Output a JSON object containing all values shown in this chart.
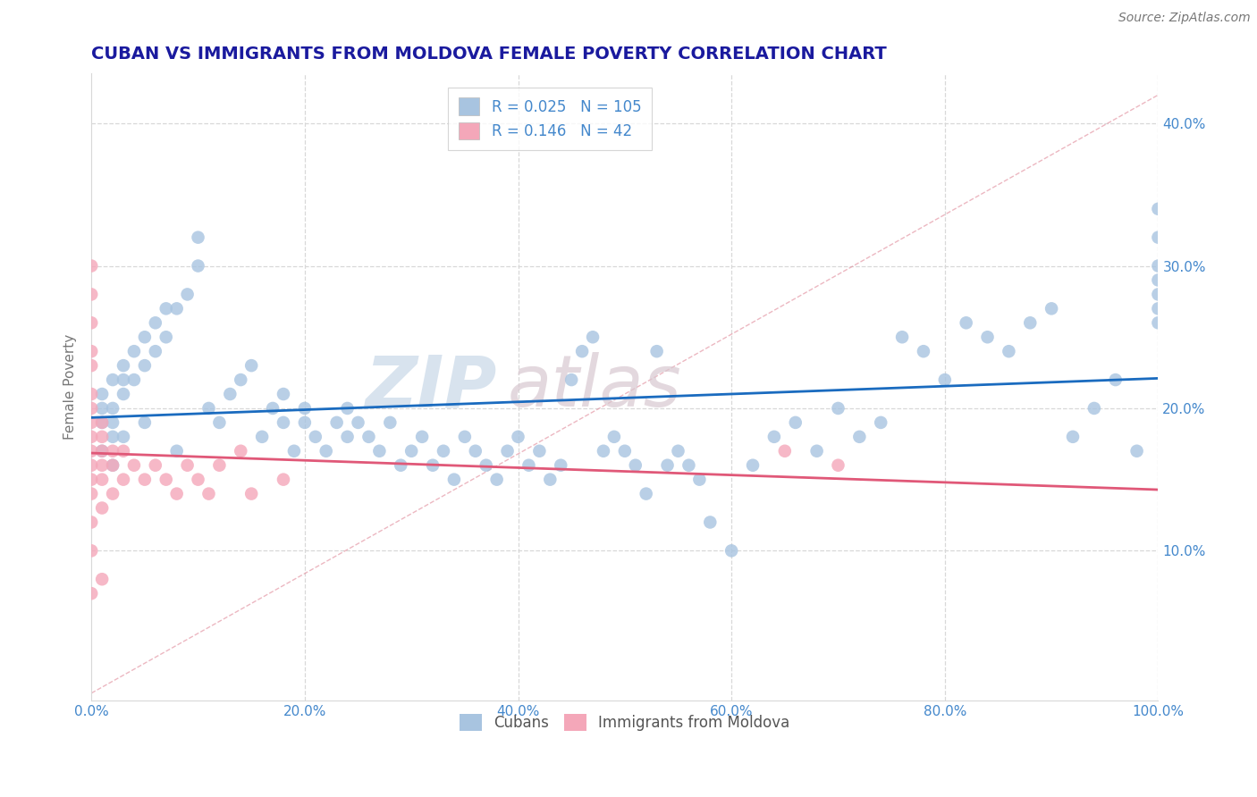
{
  "title": "CUBAN VS IMMIGRANTS FROM MOLDOVA FEMALE POVERTY CORRELATION CHART",
  "source": "Source: ZipAtlas.com",
  "ylabel": "Female Poverty",
  "xlim": [
    0,
    1.0
  ],
  "ylim": [
    -0.005,
    0.435
  ],
  "xticks": [
    0.0,
    0.2,
    0.4,
    0.6,
    0.8,
    1.0
  ],
  "xtick_labels": [
    "0.0%",
    "20.0%",
    "40.0%",
    "60.0%",
    "80.0%",
    "100.0%"
  ],
  "yticks": [
    0.0,
    0.1,
    0.2,
    0.3,
    0.4
  ],
  "right_ytick_labels": [
    "",
    "10.0%",
    "20.0%",
    "30.0%",
    "40.0%"
  ],
  "cubans_R": 0.025,
  "cubans_N": 105,
  "moldova_R": 0.146,
  "moldova_N": 42,
  "cubans_color": "#a8c4e0",
  "moldova_color": "#f4a7b9",
  "cubans_line_color": "#1a6bbf",
  "moldova_line_color": "#e05878",
  "title_color": "#1a1a9e",
  "axis_label_color": "#777777",
  "tick_color": "#4488cc",
  "grid_color": "#d8d8d8",
  "watermark_color": "#c8d8e8",
  "watermark2_color": "#d8c8d0",
  "cubans_x": [
    0.01,
    0.01,
    0.01,
    0.02,
    0.02,
    0.02,
    0.02,
    0.03,
    0.03,
    0.03,
    0.04,
    0.04,
    0.05,
    0.05,
    0.06,
    0.06,
    0.07,
    0.07,
    0.08,
    0.09,
    0.1,
    0.1,
    0.11,
    0.12,
    0.13,
    0.14,
    0.15,
    0.16,
    0.17,
    0.18,
    0.18,
    0.19,
    0.2,
    0.2,
    0.21,
    0.22,
    0.23,
    0.24,
    0.24,
    0.25,
    0.26,
    0.27,
    0.28,
    0.29,
    0.3,
    0.31,
    0.32,
    0.33,
    0.34,
    0.35,
    0.36,
    0.37,
    0.38,
    0.39,
    0.4,
    0.41,
    0.42,
    0.43,
    0.44,
    0.45,
    0.46,
    0.47,
    0.48,
    0.49,
    0.5,
    0.51,
    0.52,
    0.53,
    0.54,
    0.55,
    0.56,
    0.57,
    0.58,
    0.6,
    0.62,
    0.64,
    0.66,
    0.68,
    0.7,
    0.72,
    0.74,
    0.76,
    0.78,
    0.8,
    0.82,
    0.84,
    0.86,
    0.88,
    0.9,
    0.92,
    0.94,
    0.96,
    0.98,
    1.0,
    1.0,
    1.0,
    1.0,
    1.0,
    1.0,
    1.0,
    0.01,
    0.02,
    0.03,
    0.05,
    0.08
  ],
  "cubans_y": [
    0.19,
    0.2,
    0.21,
    0.18,
    0.19,
    0.2,
    0.22,
    0.21,
    0.22,
    0.23,
    0.22,
    0.24,
    0.23,
    0.25,
    0.24,
    0.26,
    0.25,
    0.27,
    0.27,
    0.28,
    0.32,
    0.3,
    0.2,
    0.19,
    0.21,
    0.22,
    0.23,
    0.18,
    0.2,
    0.19,
    0.21,
    0.17,
    0.19,
    0.2,
    0.18,
    0.17,
    0.19,
    0.18,
    0.2,
    0.19,
    0.18,
    0.17,
    0.19,
    0.16,
    0.17,
    0.18,
    0.16,
    0.17,
    0.15,
    0.18,
    0.17,
    0.16,
    0.15,
    0.17,
    0.18,
    0.16,
    0.17,
    0.15,
    0.16,
    0.22,
    0.24,
    0.25,
    0.17,
    0.18,
    0.17,
    0.16,
    0.14,
    0.24,
    0.16,
    0.17,
    0.16,
    0.15,
    0.12,
    0.1,
    0.16,
    0.18,
    0.19,
    0.17,
    0.2,
    0.18,
    0.19,
    0.25,
    0.24,
    0.22,
    0.26,
    0.25,
    0.24,
    0.26,
    0.27,
    0.18,
    0.2,
    0.22,
    0.17,
    0.26,
    0.28,
    0.3,
    0.29,
    0.27,
    0.32,
    0.34,
    0.17,
    0.16,
    0.18,
    0.19,
    0.17
  ],
  "moldova_x": [
    0.0,
    0.0,
    0.0,
    0.0,
    0.0,
    0.0,
    0.0,
    0.0,
    0.0,
    0.0,
    0.0,
    0.0,
    0.0,
    0.0,
    0.0,
    0.0,
    0.01,
    0.01,
    0.01,
    0.01,
    0.01,
    0.01,
    0.01,
    0.02,
    0.02,
    0.02,
    0.03,
    0.03,
    0.04,
    0.05,
    0.06,
    0.07,
    0.08,
    0.09,
    0.1,
    0.11,
    0.12,
    0.14,
    0.15,
    0.18,
    0.65,
    0.7
  ],
  "moldova_y": [
    0.3,
    0.28,
    0.26,
    0.24,
    0.23,
    0.21,
    0.2,
    0.19,
    0.18,
    0.17,
    0.16,
    0.15,
    0.14,
    0.12,
    0.1,
    0.07,
    0.19,
    0.18,
    0.17,
    0.16,
    0.15,
    0.13,
    0.08,
    0.17,
    0.16,
    0.14,
    0.17,
    0.15,
    0.16,
    0.15,
    0.16,
    0.15,
    0.14,
    0.16,
    0.15,
    0.14,
    0.16,
    0.17,
    0.14,
    0.15,
    0.17,
    0.16
  ]
}
